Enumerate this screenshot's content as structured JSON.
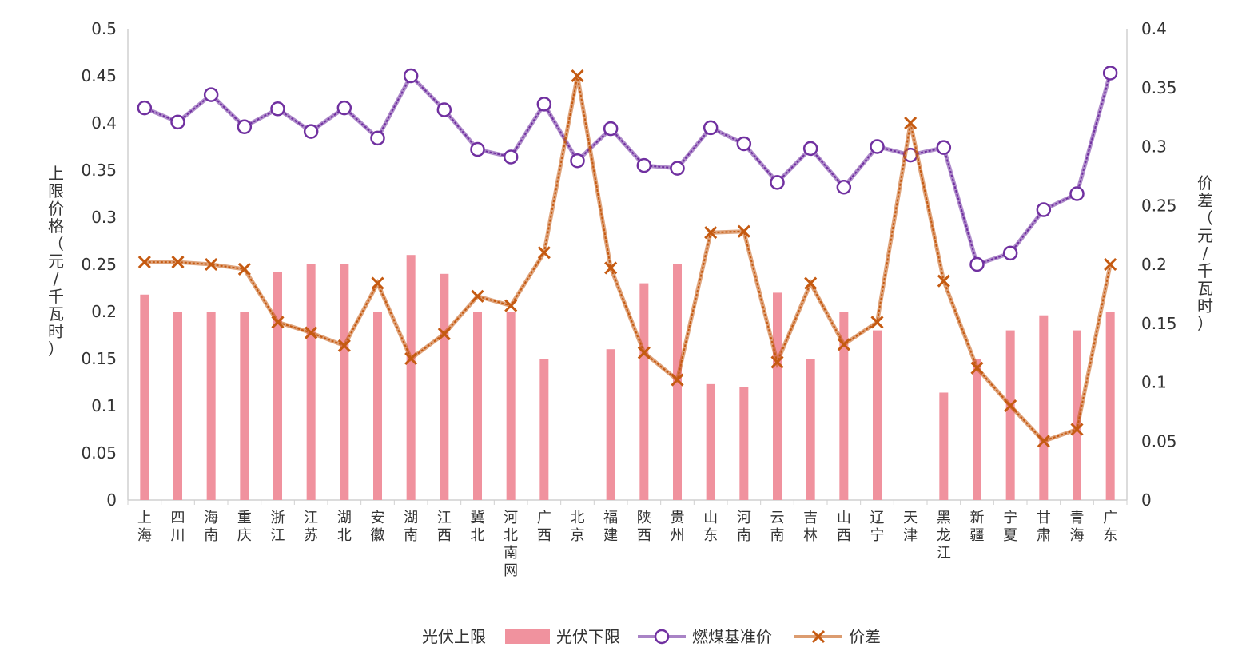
{
  "chart_data": {
    "type": "bar+line",
    "categories": [
      "上海",
      "四川",
      "海南",
      "重庆",
      "浙江",
      "江苏",
      "湖北",
      "安徽",
      "湖南",
      "江西",
      "冀北",
      "河北南网",
      "广西",
      "北京",
      "福建",
      "陕西",
      "贵州",
      "山东",
      "河南",
      "云南",
      "吉林",
      "山西",
      "辽宁",
      "天津",
      "黑龙江",
      "新疆",
      "宁夏",
      "甘肃",
      "青海",
      "广东"
    ],
    "series": [
      {
        "name": "光伏上限",
        "axis": "left",
        "kind": "bar",
        "values": [
          null,
          null,
          null,
          null,
          null,
          null,
          null,
          null,
          null,
          null,
          null,
          null,
          null,
          null,
          null,
          null,
          null,
          null,
          null,
          null,
          null,
          null,
          null,
          null,
          null,
          null,
          null,
          null,
          null,
          null
        ]
      },
      {
        "name": "光伏下限",
        "axis": "left",
        "kind": "bar",
        "color": "#F0929E",
        "values": [
          0.218,
          0.2,
          0.2,
          0.2,
          0.242,
          0.25,
          0.25,
          0.2,
          0.26,
          0.24,
          0.2,
          0.2,
          0.15,
          null,
          0.16,
          0.23,
          0.25,
          0.123,
          0.12,
          0.22,
          0.15,
          0.2,
          0.18,
          null,
          0.114,
          0.15,
          0.18,
          0.196,
          0.18,
          0.2
        ]
      },
      {
        "name": "燃煤基准价",
        "axis": "left",
        "kind": "line",
        "marker": "circle",
        "color": "#7030A0",
        "values": [
          0.416,
          0.401,
          0.43,
          0.396,
          0.415,
          0.391,
          0.416,
          0.384,
          0.45,
          0.414,
          0.372,
          0.364,
          0.42,
          0.36,
          0.394,
          0.355,
          0.352,
          0.395,
          0.378,
          0.337,
          0.373,
          0.332,
          0.375,
          0.366,
          0.374,
          0.25,
          0.262,
          0.308,
          0.325,
          0.453
        ]
      },
      {
        "name": "价差",
        "axis": "right",
        "kind": "line",
        "marker": "x",
        "color": "#C55A11",
        "values": [
          0.202,
          0.202,
          0.2,
          0.196,
          0.151,
          0.142,
          0.131,
          0.184,
          0.12,
          0.141,
          0.173,
          0.165,
          0.21,
          0.36,
          0.197,
          0.125,
          0.102,
          0.227,
          0.228,
          0.117,
          0.184,
          0.132,
          0.151,
          0.32,
          0.186,
          0.112,
          0.08,
          0.05,
          0.06,
          0.2
        ]
      }
    ],
    "ylabel": "上限价格（元/千瓦时）",
    "y2label": "价差（元/千瓦时）",
    "ylim": [
      0,
      0.5
    ],
    "y2lim": [
      0,
      0.4
    ],
    "yticks": [
      "0",
      "0.05",
      "0.1",
      "0.15",
      "0.2",
      "0.25",
      "0.3",
      "0.35",
      "0.4",
      "0.45",
      "0.5"
    ],
    "y2ticks": [
      "0",
      "0.05",
      "0.1",
      "0.15",
      "0.2",
      "0.25",
      "0.3",
      "0.35",
      "0.4"
    ],
    "legend": [
      "光伏上限",
      "光伏下限",
      "燃煤基准价",
      "价差"
    ],
    "legend_position": "bottom",
    "grid": false
  }
}
